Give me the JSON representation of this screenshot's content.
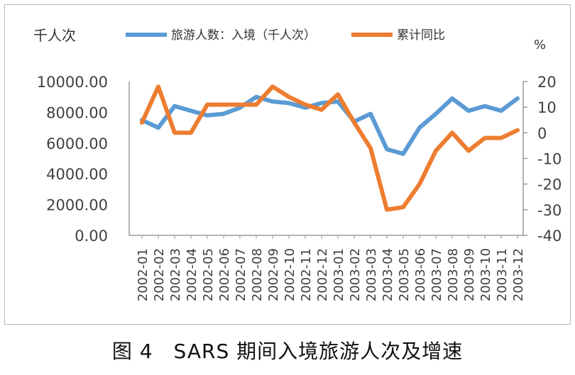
{
  "chart_data": {
    "type": "line",
    "ylabel_left": "千人次",
    "ylabel_right": "%",
    "categories": [
      "2002-01",
      "2002-02",
      "2002-03",
      "2002-04",
      "2002-05",
      "2002-06",
      "2002-07",
      "2002-08",
      "2002-09",
      "2002-10",
      "2002-11",
      "2002-12",
      "2003-01",
      "2003-02",
      "2003-03",
      "2003-04",
      "2003-05",
      "2003-06",
      "2003-07",
      "2003-08",
      "2003-09",
      "2003-10",
      "2003-11",
      "2003-12"
    ],
    "left_ticks": [
      "10000.00",
      "8000.00",
      "6000.00",
      "4000.00",
      "2000.00",
      "0.00"
    ],
    "right_ticks": [
      "20",
      "10",
      "0",
      "-10",
      "-20",
      "-30",
      "-40"
    ],
    "ylim_left": [
      0,
      10000
    ],
    "ylim_right": [
      -40,
      20
    ],
    "series": [
      {
        "name": "旅游人数：入境（千人次）",
        "axis": "left",
        "color": "#5B9BD5",
        "values": [
          7500,
          7000,
          8400,
          8100,
          7800,
          7900,
          8300,
          9000,
          8700,
          8600,
          8300,
          8600,
          8700,
          7400,
          7900,
          5600,
          5300,
          7000,
          7900,
          8900,
          8100,
          8400,
          8100,
          8900
        ]
      },
      {
        "name": "累计同比",
        "axis": "right",
        "color": "#ED7D31",
        "values": [
          4,
          18,
          0,
          0,
          11,
          11,
          11,
          11,
          18,
          14,
          11,
          9,
          15,
          4,
          -6,
          -30,
          -29,
          -20,
          -7,
          0,
          -7,
          -2,
          -2,
          1
        ]
      }
    ]
  },
  "caption": "图 4　SARS 期间入境旅游人次及增速"
}
